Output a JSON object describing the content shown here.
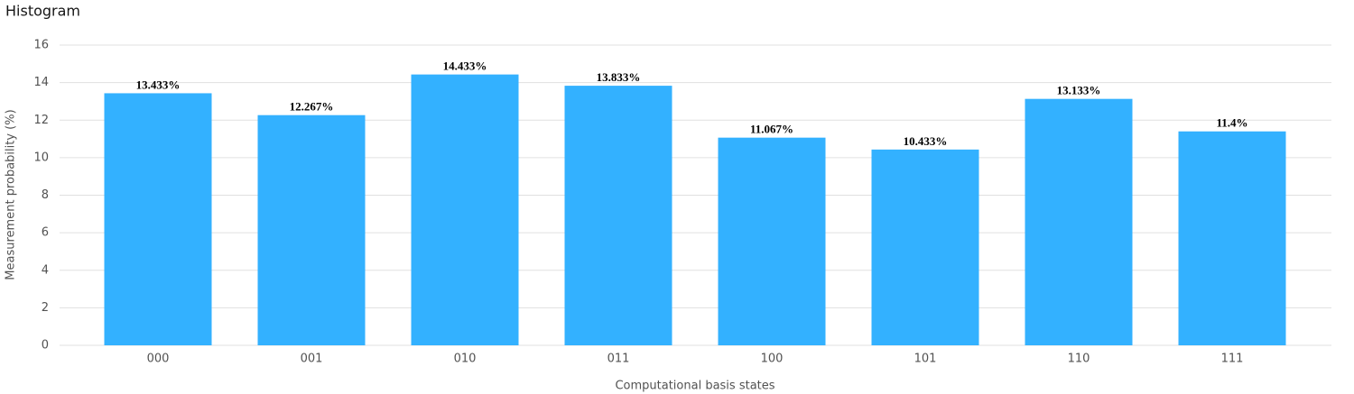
{
  "chart_data": {
    "type": "bar",
    "title": "Histogram",
    "x_label": "Computational basis states",
    "y_label": "Measurement probability (%)",
    "categories": [
      "000",
      "001",
      "010",
      "011",
      "100",
      "101",
      "110",
      "111"
    ],
    "values": [
      13.433,
      12.267,
      14.433,
      13.833,
      11.067,
      10.433,
      13.133,
      11.4
    ],
    "value_labels": [
      "13.433%",
      "12.267%",
      "14.433%",
      "13.833%",
      "11.067%",
      "10.433%",
      "13.133%",
      "11.4%"
    ],
    "color": "#33b1ff",
    "ylim": [
      0,
      16
    ],
    "yticks": [
      0,
      2,
      4,
      6,
      8,
      10,
      12,
      14,
      16
    ],
    "grid": true
  }
}
